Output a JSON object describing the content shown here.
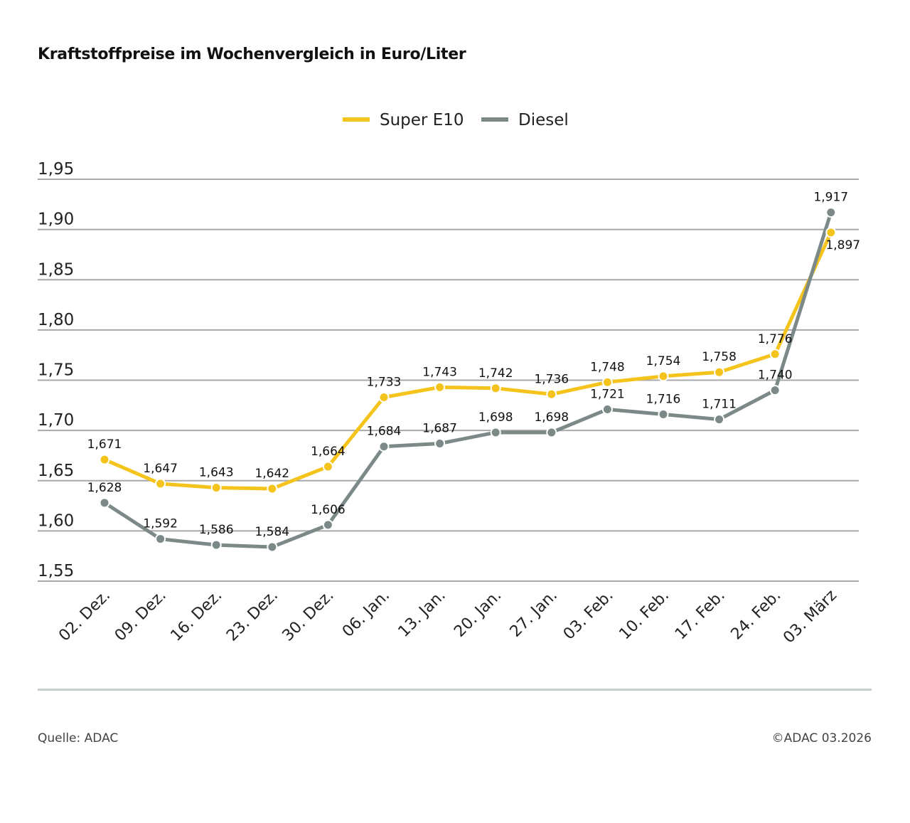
{
  "chart_data": {
    "type": "line",
    "title": "Kraftstoffpreise im Wochenvergleich in Euro/Liter",
    "categories": [
      "02. Dez.",
      "09. Dez.",
      "16. Dez.",
      "23. Dez.",
      "30. Dez.",
      "06. Jan.",
      "13. Jan.",
      "20. Jan.",
      "27. Jan.",
      "03. Feb.",
      "10. Feb.",
      "17. Feb.",
      "24. Feb.",
      "03. März"
    ],
    "series": [
      {
        "name": "Super E10",
        "color": "#f5c41c",
        "values": [
          1.671,
          1.647,
          1.643,
          1.642,
          1.664,
          1.733,
          1.743,
          1.742,
          1.736,
          1.748,
          1.754,
          1.758,
          1.776,
          1.897
        ],
        "labels": [
          "1,671",
          "1,647",
          "1,643",
          "1,642",
          "1,664",
          "1,733",
          "1,743",
          "1,742",
          "1,736",
          "1,748",
          "1,754",
          "1,758",
          "1,776",
          "1,897"
        ]
      },
      {
        "name": "Diesel",
        "color": "#7b8a88",
        "values": [
          1.628,
          1.592,
          1.586,
          1.584,
          1.606,
          1.684,
          1.687,
          1.698,
          1.698,
          1.721,
          1.716,
          1.711,
          1.74,
          1.917
        ],
        "labels": [
          "1,628",
          "1,592",
          "1,586",
          "1,584",
          "1,606",
          "1,684",
          "1,687",
          "1,698",
          "1,698",
          "1,721",
          "1,716",
          "1,711",
          "1,740",
          "1,917"
        ]
      }
    ],
    "yticks": [
      1.55,
      1.6,
      1.65,
      1.7,
      1.75,
      1.8,
      1.85,
      1.9,
      1.95
    ],
    "ytick_labels": [
      "1,55",
      "1,60",
      "1,65",
      "1,70",
      "1,75",
      "1,80",
      "1,85",
      "1,90",
      "1,95"
    ],
    "ylim": [
      1.55,
      1.95
    ],
    "grid": "horizontal",
    "legend": "top-center",
    "xlabel": "",
    "ylabel": ""
  },
  "footer": {
    "source": "Quelle: ADAC",
    "copyright": "©ADAC 03.2026"
  }
}
